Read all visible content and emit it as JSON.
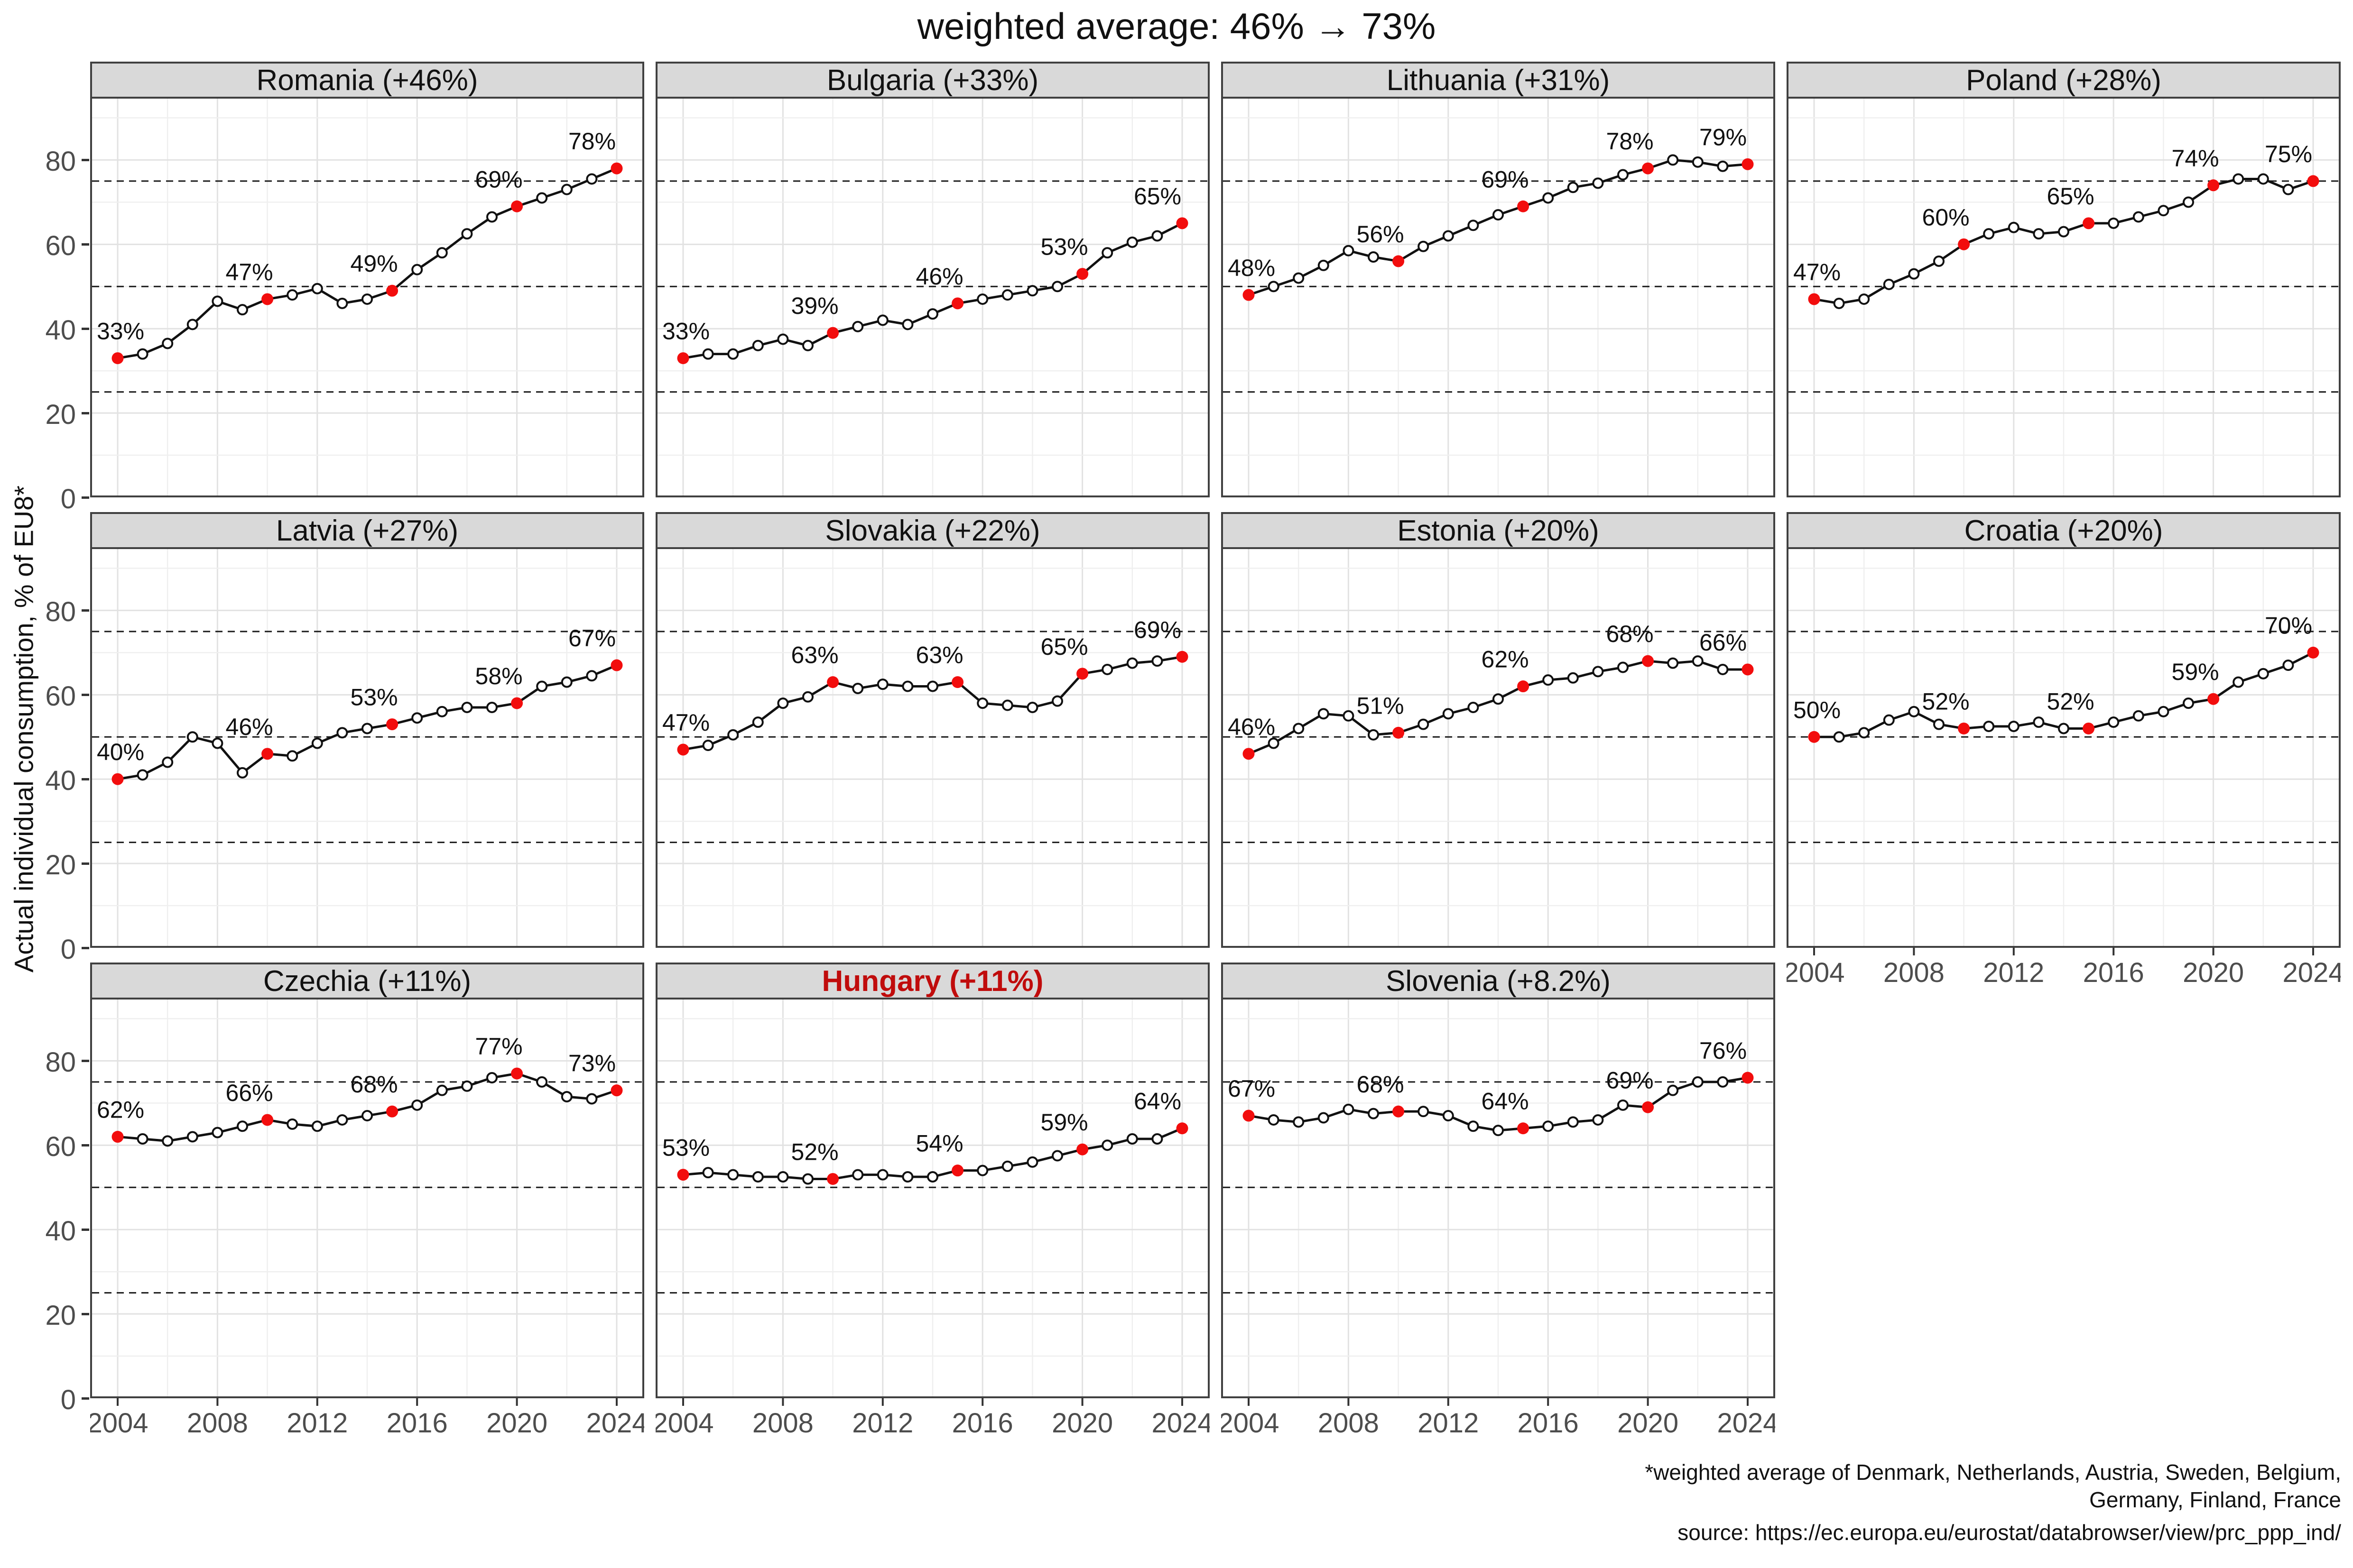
{
  "title": "weighted average: 46% → 73%",
  "y_axis": {
    "label": "Actual individual consumption, % of EU8*",
    "ticks": [
      0,
      20,
      40,
      60,
      80
    ],
    "minor_gridlines": [
      10,
      30,
      50,
      70,
      90
    ],
    "dashed_lines": [
      25,
      50,
      75
    ],
    "ylim": [
      0,
      95
    ]
  },
  "x_axis": {
    "ticks": [
      2004,
      2008,
      2012,
      2016,
      2020,
      2024
    ],
    "minor_gridlines": [
      2006,
      2010,
      2014,
      2018,
      2022
    ],
    "range": [
      2004,
      2024
    ]
  },
  "footnote": {
    "line1": "*weighted average of Denmark, Netherlands, Austria, Sweden, Belgium,",
    "line2": "Germany, Finland, France",
    "source": "source: https://ec.europa.eu/eurostat/databrowser/view/prc_ppp_ind/"
  },
  "colors": {
    "red_point": "#f20d0d",
    "hungary_title": "#c00c0c",
    "header_bg": "#d9d9d9",
    "panel_border": "#404040",
    "grid_major": "#e2e2e2",
    "grid_minor": "#efefef",
    "dashed_line": "#1a1a1a",
    "series_line": "#111111",
    "tick_text": "#4d4d4d"
  },
  "chart_data": {
    "type": "line",
    "x": [
      2004,
      2005,
      2006,
      2007,
      2008,
      2009,
      2010,
      2011,
      2012,
      2013,
      2014,
      2015,
      2016,
      2017,
      2018,
      2019,
      2020,
      2021,
      2022,
      2023,
      2024
    ],
    "labeled_years": [
      2004,
      2010,
      2015,
      2020,
      2024
    ],
    "panels": [
      {
        "name": "romania",
        "title": "Romania (+46%)",
        "highlight": false,
        "values": [
          33,
          34,
          36.5,
          41,
          46.5,
          44.5,
          47,
          48,
          49.5,
          46,
          47,
          49,
          54,
          58,
          62.5,
          66.5,
          69,
          71,
          73,
          75.5,
          78
        ],
        "labels": [
          "33%",
          "47%",
          "49%",
          "69%",
          "78%"
        ]
      },
      {
        "name": "bulgaria",
        "title": "Bulgaria (+33%)",
        "highlight": false,
        "values": [
          33,
          34,
          34,
          36,
          37.5,
          36,
          39,
          40.5,
          42,
          41,
          43.5,
          46,
          47,
          48,
          49,
          50,
          53,
          58,
          60.5,
          62,
          65
        ],
        "labels": [
          "33%",
          "39%",
          "46%",
          "53%",
          "65%"
        ]
      },
      {
        "name": "lithuania",
        "title": "Lithuania (+31%)",
        "highlight": false,
        "values": [
          48,
          50,
          52,
          55,
          58.5,
          57,
          56,
          59.5,
          62,
          64.5,
          67,
          69,
          71,
          73.5,
          74.5,
          76.5,
          78,
          80,
          79.5,
          78.5,
          79
        ],
        "labels": [
          "48%",
          "56%",
          "69%",
          "78%",
          "79%"
        ]
      },
      {
        "name": "poland",
        "title": "Poland (+28%)",
        "highlight": false,
        "values": [
          47,
          46,
          47,
          50.5,
          53,
          56,
          60,
          62.5,
          64,
          62.5,
          63,
          65,
          65,
          66.5,
          68,
          70,
          74,
          75.5,
          75.5,
          73,
          75
        ],
        "labels": [
          "47%",
          "60%",
          "65%",
          "74%",
          "75%"
        ]
      },
      {
        "name": "latvia",
        "title": "Latvia (+27%)",
        "highlight": false,
        "values": [
          40,
          41,
          44,
          50,
          48.5,
          41.5,
          46,
          45.5,
          48.5,
          51,
          52,
          53,
          54.5,
          56,
          57,
          57,
          58,
          62,
          63,
          64.5,
          67
        ],
        "labels": [
          "40%",
          "46%",
          "53%",
          "58%",
          "67%"
        ]
      },
      {
        "name": "slovakia",
        "title": "Slovakia (+22%)",
        "highlight": false,
        "values": [
          47,
          48,
          50.5,
          53.5,
          58,
          59.5,
          63,
          61.5,
          62.5,
          62,
          62,
          63,
          58,
          57.5,
          57,
          58.5,
          65,
          66,
          67.5,
          68,
          69
        ],
        "labels": [
          "47%",
          "63%",
          "63%",
          "65%",
          "69%"
        ]
      },
      {
        "name": "estonia",
        "title": "Estonia (+20%)",
        "highlight": false,
        "values": [
          46,
          48.5,
          52,
          55.5,
          55,
          50.5,
          51,
          53,
          55.5,
          57,
          59,
          62,
          63.5,
          64,
          65.5,
          66.5,
          68,
          67.5,
          68,
          66,
          66
        ],
        "labels": [
          "46%",
          "51%",
          "62%",
          "68%",
          "66%"
        ]
      },
      {
        "name": "croatia",
        "title": "Croatia (+20%)",
        "highlight": false,
        "values": [
          50,
          50,
          51,
          54,
          56,
          53,
          52,
          52.5,
          52.5,
          53.5,
          52,
          52,
          53.5,
          55,
          56,
          58,
          59,
          63,
          65,
          67,
          70
        ],
        "labels": [
          "50%",
          "52%",
          "52%",
          "59%",
          "70%"
        ]
      },
      {
        "name": "czechia",
        "title": "Czechia (+11%)",
        "highlight": false,
        "values": [
          62,
          61.5,
          61,
          62,
          63,
          64.5,
          66,
          65,
          64.5,
          66,
          67,
          68,
          69.5,
          73,
          74,
          76,
          77,
          75,
          71.5,
          71,
          73
        ],
        "labels": [
          "62%",
          "66%",
          "68%",
          "77%",
          "73%"
        ]
      },
      {
        "name": "hungary",
        "title": "Hungary (+11%)",
        "highlight": true,
        "values": [
          53,
          53.5,
          53,
          52.5,
          52.5,
          52,
          52,
          53,
          53,
          52.5,
          52.5,
          54,
          54,
          55,
          56,
          57.5,
          59,
          60,
          61.5,
          61.5,
          64
        ],
        "labels": [
          "53%",
          "52%",
          "54%",
          "59%",
          "64%"
        ]
      },
      {
        "name": "slovenia",
        "title": "Slovenia (+8.2%)",
        "highlight": false,
        "values": [
          67,
          66,
          65.5,
          66.5,
          68.5,
          67.5,
          68,
          68,
          67,
          64.5,
          63.5,
          64,
          64.5,
          65.5,
          66,
          69.5,
          69,
          73,
          75,
          75,
          76
        ],
        "labels": [
          "67%",
          "68%",
          "64%",
          "69%",
          "76%"
        ]
      }
    ]
  }
}
